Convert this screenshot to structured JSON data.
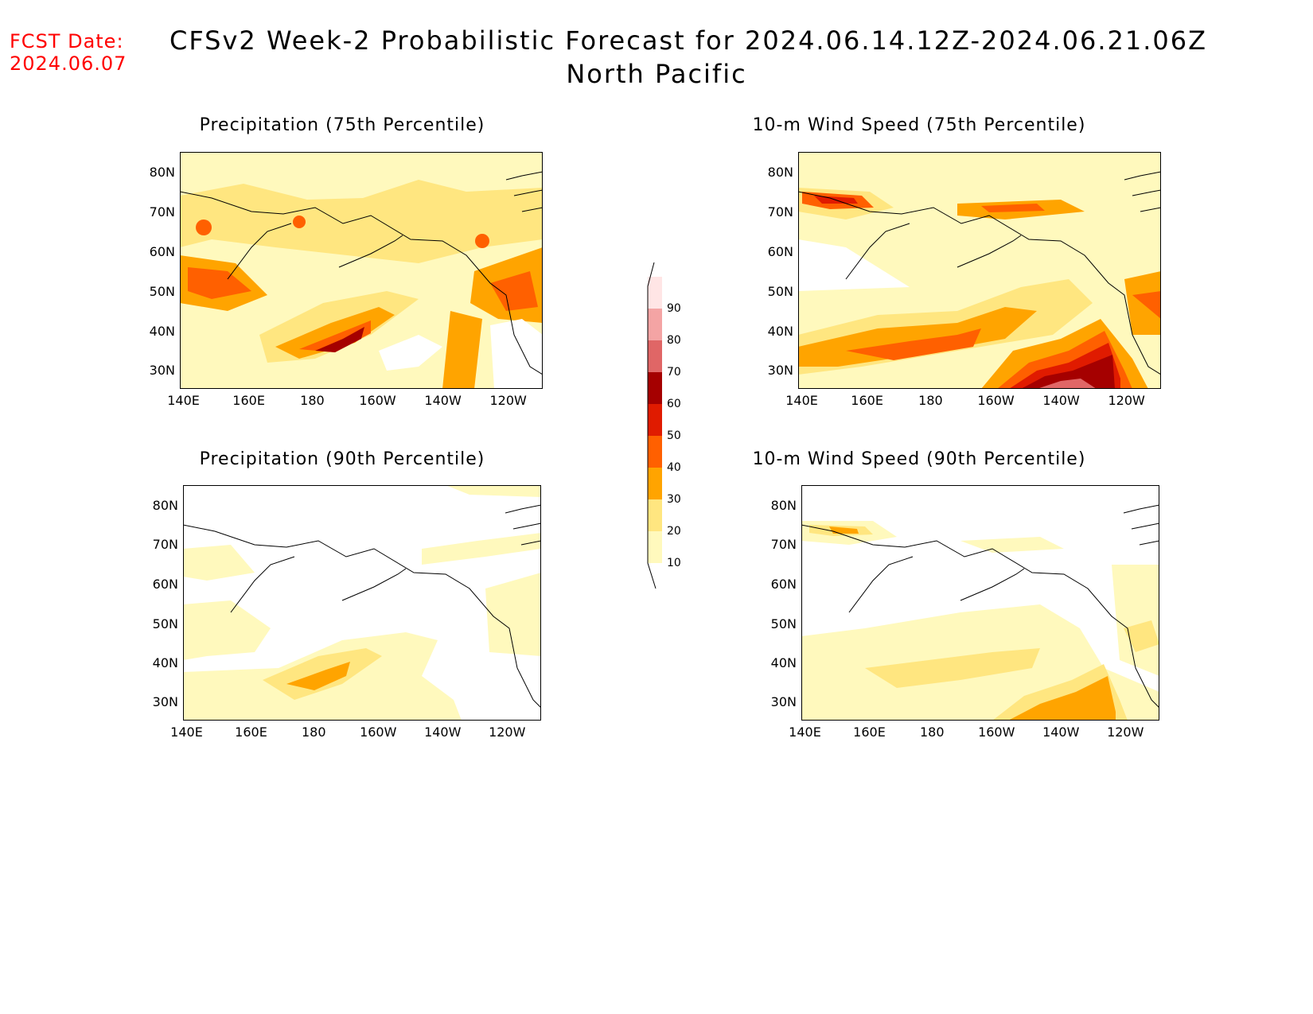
{
  "header": {
    "fcst_label": "FCST Date:",
    "fcst_date": "2024.06.07",
    "title": "CFSv2 Week-2 Probabilistic Forecast for 2024.06.14.12Z-2024.06.21.06Z",
    "region": "North Pacific"
  },
  "panels": [
    {
      "title": "Precipitation (75th Percentile)"
    },
    {
      "title": "10-m Wind Speed (75th Percentile)"
    },
    {
      "title": "Precipitation (90th Percentile)"
    },
    {
      "title": "10-m Wind Speed (90th Percentile)"
    }
  ],
  "axes": {
    "lat_labels": [
      "80N",
      "70N",
      "60N",
      "50N",
      "40N",
      "30N"
    ],
    "lon_labels": [
      "140E",
      "160E",
      "180",
      "160W",
      "140W",
      "120W"
    ]
  },
  "colorbar": {
    "levels": [
      "10",
      "20",
      "30",
      "40",
      "50",
      "60",
      "70",
      "80",
      "90"
    ],
    "colors": [
      "#fff9bd",
      "#ffe680",
      "#ffa400",
      "#ff6000",
      "#e01b00",
      "#a50000",
      "#e06666",
      "#f4a4a4",
      "#ffe5e5"
    ]
  }
}
